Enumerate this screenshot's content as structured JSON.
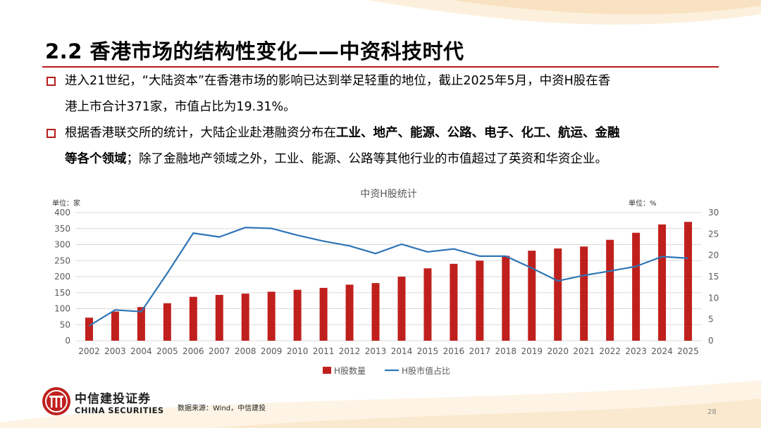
{
  "slide": {
    "title": "2.2  香港市场的结构性变化——中资科技时代",
    "bullets": [
      {
        "lines": [
          "进入21世纪，“大陆资本”在香港市场的影响已达到举足轻重的地位，截止2025年5月，中资H股在香",
          "港上市合计371家，市值占比为19.31%。"
        ]
      },
      {
        "line1_pre": "根据香港联交所的统计，大陆企业赴港融资分布在",
        "line1_bold": "工业、地产、能源、公路、电子、化工、航运、金融",
        "line2_bold": "等各个领域",
        "line2_post": "；除了金融地产领域之外，工业、能源、公路等其他行业的市值超过了英资和华资企业。"
      }
    ],
    "logo_cn": "中信建投证券",
    "logo_en": "CHINA SECURITIES",
    "source": "数据来源：Wind，中信建投",
    "page_number": "28"
  },
  "colors": {
    "accent_red": "#b71c1c",
    "bar_red": "#c0201d",
    "line_blue": "#2e75b6"
  },
  "chart_data": {
    "type": "bar",
    "title": "中资H股统计",
    "left_unit": "单位：家",
    "right_unit": "单位：%",
    "categories": [
      "2002",
      "2003",
      "2004",
      "2005",
      "2006",
      "2007",
      "2008",
      "2009",
      "2010",
      "2011",
      "2012",
      "2013",
      "2014",
      "2015",
      "2016",
      "2017",
      "2018",
      "2019",
      "2020",
      "2021",
      "2022",
      "2023",
      "2024",
      "2025"
    ],
    "ylim_left": [
      0,
      400
    ],
    "yticks_left": [
      0,
      50,
      100,
      150,
      200,
      250,
      300,
      350,
      400
    ],
    "ylim_right": [
      0,
      30
    ],
    "yticks_right": [
      0,
      5,
      10,
      15,
      20,
      25,
      30
    ],
    "series": [
      {
        "name": "H股数量",
        "type": "bar",
        "axis": "left",
        "values": [
          72,
          91,
          105,
          117,
          137,
          143,
          147,
          153,
          159,
          165,
          175,
          180,
          200,
          226,
          240,
          250,
          265,
          281,
          288,
          294,
          315,
          337,
          363,
          371
        ]
      },
      {
        "name": "H股市值占比",
        "type": "line",
        "axis": "right",
        "values": [
          3.5,
          7.2,
          6.8,
          15.8,
          25.2,
          24.3,
          26.5,
          26.3,
          24.7,
          23.3,
          22.2,
          20.4,
          22.6,
          20.8,
          21.5,
          19.8,
          19.8,
          17.0,
          14.0,
          15.3,
          16.3,
          17.4,
          19.7,
          19.3
        ]
      }
    ],
    "grid": true,
    "legend_position": "bottom"
  }
}
